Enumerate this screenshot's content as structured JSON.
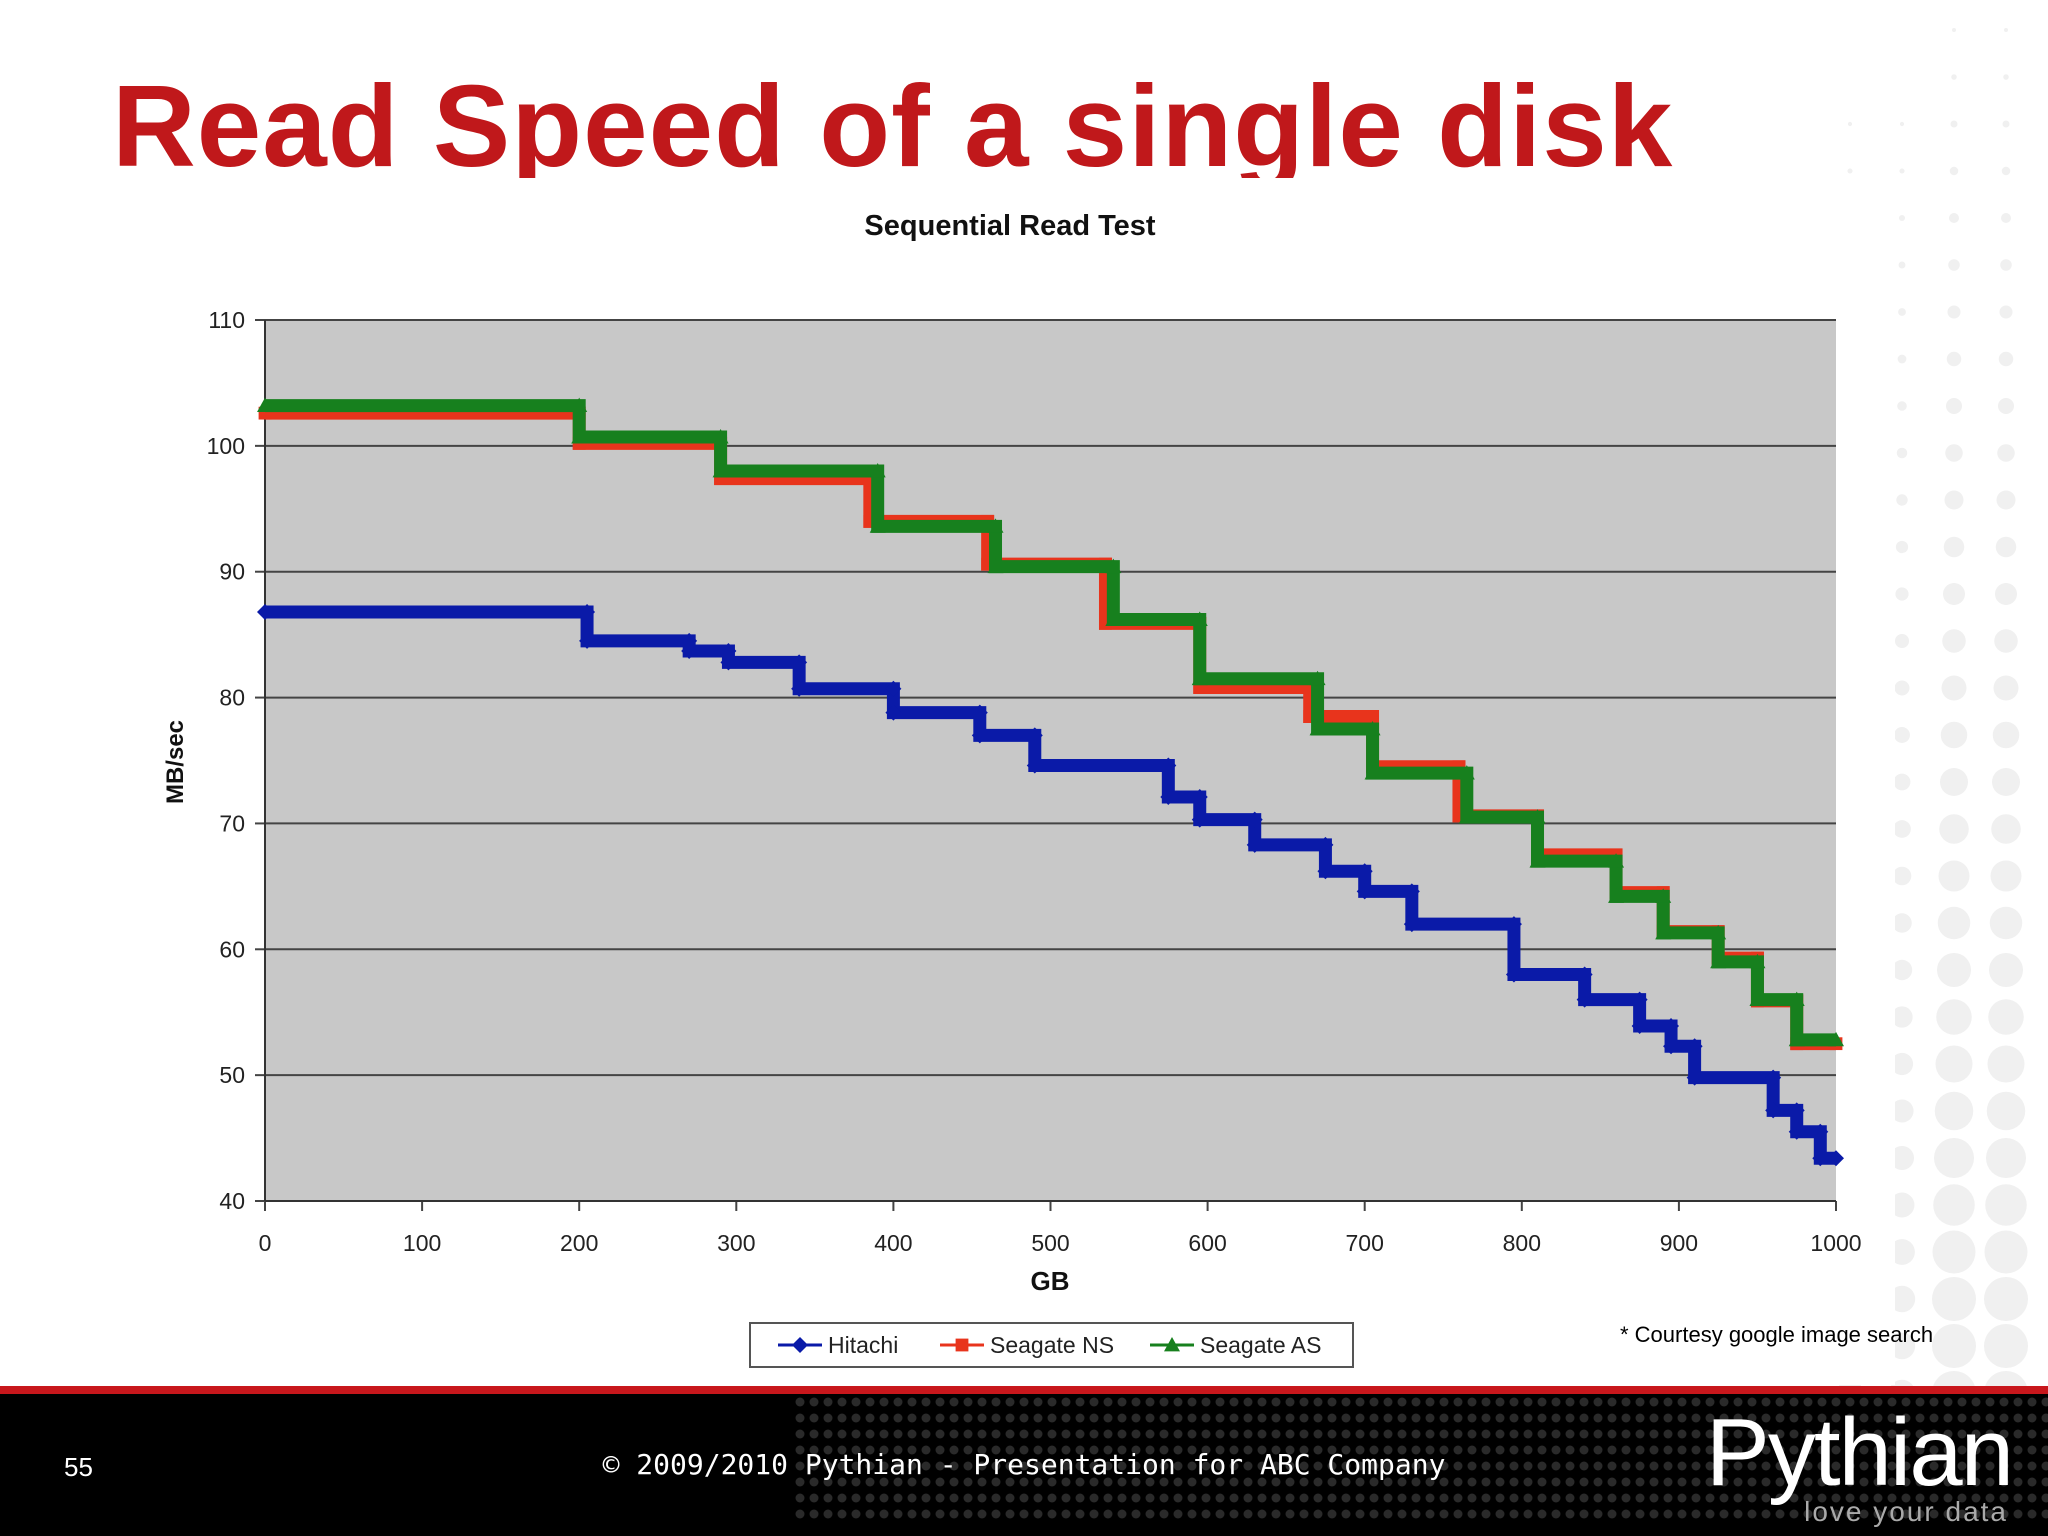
{
  "slide": {
    "title": "Read Speed of a single disk",
    "courtesy": "* Courtesy google image search",
    "page_number": "55",
    "copyright": "© 2009/2010 Pythian - Presentation for ABC Company",
    "logo_word": "Pythian",
    "logo_tagline": "love your data"
  },
  "colors": {
    "title": "#c0181b",
    "plot_bg": "#c8c8c8",
    "hitachi": "#0a1aa8",
    "seagate_ns": "#e8341c",
    "seagate_as": "#17801e"
  },
  "chart_data": {
    "type": "line",
    "title": "Sequential Read Test",
    "xlabel": "GB",
    "ylabel": "MB/sec",
    "xlim": [
      0,
      1000
    ],
    "ylim": [
      40,
      110
    ],
    "xticks": [
      0,
      100,
      200,
      300,
      400,
      500,
      600,
      700,
      800,
      900,
      1000
    ],
    "yticks": [
      40,
      50,
      60,
      70,
      80,
      90,
      100,
      110
    ],
    "grid": "horizontal",
    "legend": "bottom",
    "series": [
      {
        "name": "Hitachi",
        "marker": "diamond",
        "x": [
          0,
          205,
          205,
          270,
          270,
          295,
          295,
          340,
          340,
          400,
          400,
          455,
          455,
          490,
          490,
          575,
          575,
          595,
          595,
          630,
          630,
          675,
          675,
          700,
          700,
          730,
          730,
          795,
          795,
          840,
          840,
          875,
          875,
          895,
          895,
          910,
          910,
          960,
          960,
          975,
          975,
          990,
          990,
          1000
        ],
        "y": [
          86.8,
          86.8,
          84.5,
          84.5,
          83.7,
          83.7,
          82.8,
          82.8,
          80.7,
          80.7,
          78.8,
          78.8,
          77,
          77,
          74.6,
          74.6,
          72.1,
          72.1,
          70.3,
          70.3,
          68.3,
          68.3,
          66.2,
          66.2,
          64.6,
          64.6,
          62,
          62,
          58,
          58,
          56,
          56,
          53.9,
          53.9,
          52.3,
          52.3,
          49.8,
          49.8,
          47.2,
          47.2,
          45.5,
          45.5,
          43.4,
          43.4
        ]
      },
      {
        "name": "Seagate NS",
        "marker": "square",
        "x": [
          0,
          200,
          200,
          290,
          290,
          385,
          385,
          460,
          460,
          535,
          535,
          595,
          595,
          665,
          665,
          705,
          705,
          760,
          760,
          810,
          810,
          860,
          860,
          890,
          890,
          925,
          925,
          950,
          950,
          975,
          975,
          1000
        ],
        "y": [
          102.6,
          102.6,
          100.2,
          100.2,
          97.4,
          97.4,
          94,
          94,
          90.6,
          90.6,
          85.9,
          85.9,
          80.8,
          80.8,
          78.5,
          78.5,
          74.5,
          74.5,
          70.6,
          70.6,
          67.5,
          67.5,
          64.5,
          64.5,
          61.4,
          61.4,
          59.3,
          59.3,
          55.9,
          55.9,
          52.5,
          52.5
        ]
      },
      {
        "name": "Seagate AS",
        "marker": "triangle",
        "x": [
          0,
          200,
          200,
          290,
          290,
          390,
          390,
          465,
          465,
          540,
          540,
          595,
          595,
          670,
          670,
          705,
          705,
          765,
          765,
          810,
          810,
          860,
          860,
          890,
          890,
          925,
          925,
          950,
          950,
          975,
          975,
          1000
        ],
        "y": [
          103.2,
          103.2,
          100.7,
          100.7,
          98,
          98,
          93.6,
          93.6,
          90.4,
          90.4,
          86.2,
          86.2,
          81.5,
          81.5,
          77.5,
          77.5,
          74,
          74,
          70.5,
          70.5,
          67,
          67,
          64.2,
          64.2,
          61.3,
          61.3,
          59,
          59,
          56,
          56,
          52.8,
          52.8
        ]
      }
    ]
  }
}
